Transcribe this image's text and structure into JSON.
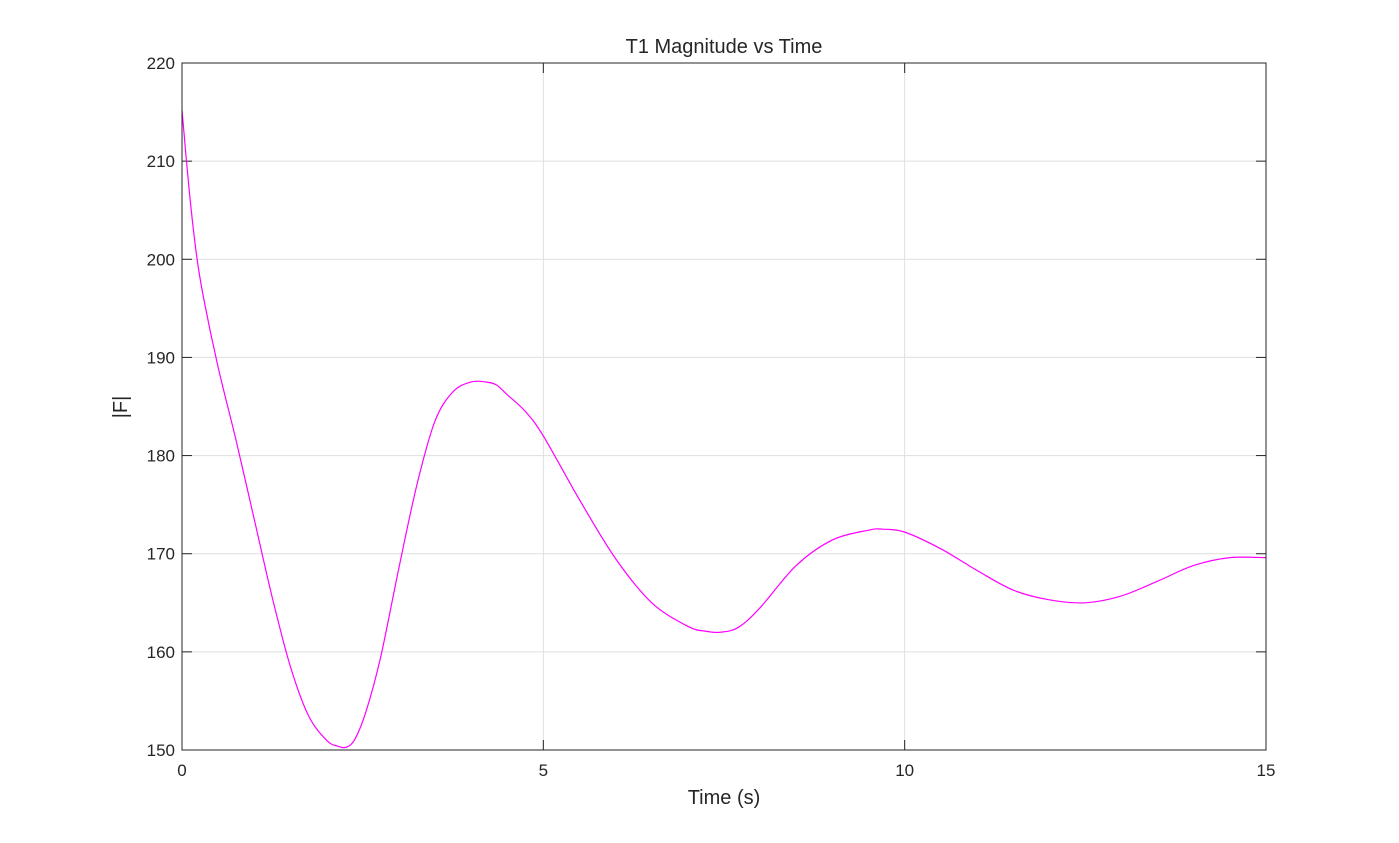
{
  "chart_data": {
    "type": "line",
    "title": "T1 Magnitude vs Time",
    "xlabel": "Time (s)",
    "ylabel": "|F|",
    "xlim": [
      0,
      15
    ],
    "ylim": [
      150,
      220
    ],
    "xticks": [
      0,
      5,
      10,
      15
    ],
    "yticks": [
      150,
      160,
      170,
      180,
      190,
      200,
      210,
      220
    ],
    "grid": true,
    "colors": {
      "line": "#ff00ff",
      "grid": "#dfdfdf",
      "axes": "#262626"
    },
    "series": [
      {
        "x": [
          0,
          0.1,
          0.2,
          0.3,
          0.5,
          0.75,
          1.0,
          1.25,
          1.5,
          1.75,
          2.0,
          2.15,
          2.28,
          2.4,
          2.55,
          2.75,
          3.0,
          3.25,
          3.5,
          3.75,
          4.0,
          4.2,
          4.35,
          4.5,
          4.75,
          5.0,
          5.5,
          6.0,
          6.5,
          7.0,
          7.25,
          7.45,
          7.7,
          8.0,
          8.5,
          9.0,
          9.5,
          9.7,
          10.0,
          10.5,
          11.0,
          11.5,
          12.0,
          12.5,
          13.0,
          13.5,
          14.0,
          14.5,
          15.0
        ],
        "y": [
          215.2,
          207,
          200.5,
          196,
          189,
          181.5,
          173.5,
          165.5,
          158.5,
          153.5,
          151,
          150.4,
          150.3,
          151.2,
          154,
          159.5,
          168.5,
          177,
          183.5,
          186.5,
          187.5,
          187.5,
          187.2,
          186.2,
          184.5,
          182,
          175.5,
          169.5,
          165,
          162.6,
          162.1,
          162,
          162.5,
          164.5,
          168.8,
          171.4,
          172.4,
          172.5,
          172.2,
          170.5,
          168.3,
          166.3,
          165.3,
          165,
          165.7,
          167.2,
          168.8,
          169.6,
          169.6
        ]
      }
    ]
  }
}
